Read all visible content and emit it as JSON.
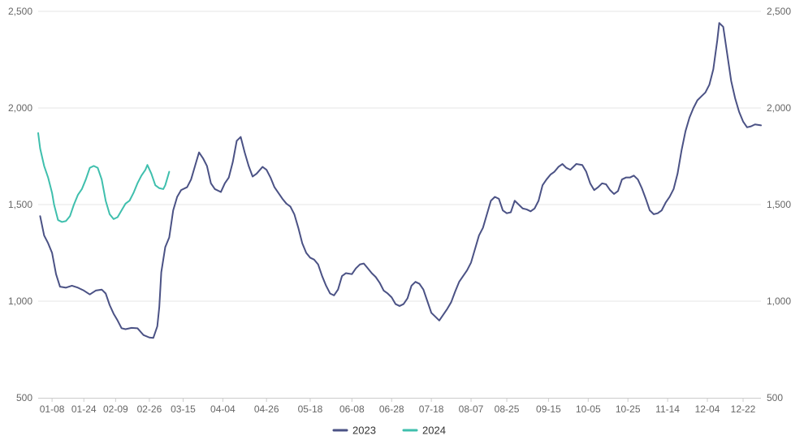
{
  "chart_data": {
    "type": "line",
    "title": "",
    "xlabel": "",
    "ylabel": "",
    "ylim": [
      500,
      2500
    ],
    "y_ticks": [
      500,
      1000,
      1500,
      2000,
      2500
    ],
    "y_tick_labels": [
      "500",
      "1,000",
      "1,500",
      "2,000",
      "2,500"
    ],
    "y_axis_sides": [
      "left",
      "right"
    ],
    "grid": true,
    "legend": "bottom-center",
    "x_tick_labels": [
      "01-08",
      "01-24",
      "02-09",
      "02-26",
      "03-15",
      "04-04",
      "04-26",
      "05-18",
      "06-08",
      "06-28",
      "07-18",
      "08-07",
      "08-25",
      "09-15",
      "10-05",
      "10-25",
      "11-14",
      "12-04",
      "12-22"
    ],
    "x_tick_day": [
      8,
      24,
      40,
      57,
      74,
      94,
      116,
      138,
      159,
      179,
      199,
      219,
      237,
      258,
      278,
      298,
      318,
      338,
      356
    ],
    "x_range_day": [
      1,
      365
    ],
    "series": [
      {
        "name": "2023",
        "color": "#4B5285",
        "points": [
          [
            2,
            1440
          ],
          [
            4,
            1340
          ],
          [
            6,
            1300
          ],
          [
            8,
            1250
          ],
          [
            10,
            1140
          ],
          [
            12,
            1075
          ],
          [
            15,
            1070
          ],
          [
            18,
            1080
          ],
          [
            21,
            1070
          ],
          [
            24,
            1055
          ],
          [
            27,
            1035
          ],
          [
            30,
            1055
          ],
          [
            33,
            1060
          ],
          [
            35,
            1040
          ],
          [
            37,
            980
          ],
          [
            39,
            935
          ],
          [
            41,
            900
          ],
          [
            43,
            860
          ],
          [
            45,
            855
          ],
          [
            48,
            862
          ],
          [
            51,
            860
          ],
          [
            54,
            825
          ],
          [
            57,
            812
          ],
          [
            59,
            810
          ],
          [
            61,
            870
          ],
          [
            62,
            970
          ],
          [
            63,
            1150
          ],
          [
            65,
            1280
          ],
          [
            67,
            1330
          ],
          [
            69,
            1470
          ],
          [
            71,
            1540
          ],
          [
            73,
            1575
          ],
          [
            76,
            1590
          ],
          [
            78,
            1630
          ],
          [
            80,
            1700
          ],
          [
            82,
            1770
          ],
          [
            84,
            1740
          ],
          [
            86,
            1700
          ],
          [
            88,
            1610
          ],
          [
            90,
            1580
          ],
          [
            93,
            1565
          ],
          [
            95,
            1610
          ],
          [
            97,
            1640
          ],
          [
            99,
            1720
          ],
          [
            101,
            1830
          ],
          [
            103,
            1850
          ],
          [
            105,
            1770
          ],
          [
            107,
            1700
          ],
          [
            109,
            1645
          ],
          [
            111,
            1660
          ],
          [
            114,
            1695
          ],
          [
            116,
            1680
          ],
          [
            118,
            1640
          ],
          [
            120,
            1590
          ],
          [
            122,
            1560
          ],
          [
            124,
            1530
          ],
          [
            126,
            1505
          ],
          [
            128,
            1490
          ],
          [
            130,
            1450
          ],
          [
            132,
            1380
          ],
          [
            134,
            1300
          ],
          [
            136,
            1250
          ],
          [
            138,
            1225
          ],
          [
            140,
            1215
          ],
          [
            142,
            1190
          ],
          [
            144,
            1130
          ],
          [
            146,
            1080
          ],
          [
            148,
            1040
          ],
          [
            150,
            1030
          ],
          [
            152,
            1060
          ],
          [
            154,
            1130
          ],
          [
            156,
            1145
          ],
          [
            159,
            1140
          ],
          [
            161,
            1170
          ],
          [
            163,
            1190
          ],
          [
            165,
            1195
          ],
          [
            167,
            1170
          ],
          [
            169,
            1145
          ],
          [
            171,
            1125
          ],
          [
            173,
            1095
          ],
          [
            175,
            1055
          ],
          [
            177,
            1040
          ],
          [
            179,
            1020
          ],
          [
            181,
            985
          ],
          [
            183,
            975
          ],
          [
            185,
            985
          ],
          [
            187,
            1015
          ],
          [
            189,
            1080
          ],
          [
            191,
            1100
          ],
          [
            193,
            1090
          ],
          [
            195,
            1060
          ],
          [
            197,
            1000
          ],
          [
            199,
            940
          ],
          [
            201,
            920
          ],
          [
            203,
            900
          ],
          [
            205,
            930
          ],
          [
            207,
            960
          ],
          [
            209,
            995
          ],
          [
            211,
            1050
          ],
          [
            213,
            1100
          ],
          [
            215,
            1130
          ],
          [
            217,
            1160
          ],
          [
            219,
            1200
          ],
          [
            221,
            1270
          ],
          [
            223,
            1340
          ],
          [
            225,
            1380
          ],
          [
            227,
            1450
          ],
          [
            229,
            1520
          ],
          [
            231,
            1540
          ],
          [
            233,
            1530
          ],
          [
            235,
            1470
          ],
          [
            237,
            1455
          ],
          [
            239,
            1460
          ],
          [
            241,
            1520
          ],
          [
            243,
            1500
          ],
          [
            245,
            1480
          ],
          [
            247,
            1475
          ],
          [
            249,
            1465
          ],
          [
            251,
            1480
          ],
          [
            253,
            1520
          ],
          [
            255,
            1600
          ],
          [
            257,
            1630
          ],
          [
            259,
            1655
          ],
          [
            261,
            1670
          ],
          [
            263,
            1695
          ],
          [
            265,
            1710
          ],
          [
            267,
            1690
          ],
          [
            269,
            1680
          ],
          [
            272,
            1710
          ],
          [
            275,
            1705
          ],
          [
            277,
            1670
          ],
          [
            279,
            1610
          ],
          [
            281,
            1575
          ],
          [
            283,
            1590
          ],
          [
            285,
            1610
          ],
          [
            287,
            1605
          ],
          [
            289,
            1575
          ],
          [
            291,
            1555
          ],
          [
            293,
            1570
          ],
          [
            295,
            1630
          ],
          [
            297,
            1640
          ],
          [
            299,
            1640
          ],
          [
            301,
            1650
          ],
          [
            303,
            1630
          ],
          [
            305,
            1585
          ],
          [
            307,
            1530
          ],
          [
            309,
            1470
          ],
          [
            311,
            1450
          ],
          [
            313,
            1455
          ],
          [
            315,
            1470
          ],
          [
            317,
            1510
          ],
          [
            319,
            1540
          ],
          [
            321,
            1580
          ],
          [
            323,
            1660
          ],
          [
            325,
            1780
          ],
          [
            327,
            1880
          ],
          [
            329,
            1950
          ],
          [
            331,
            2000
          ],
          [
            333,
            2040
          ],
          [
            335,
            2060
          ],
          [
            337,
            2080
          ],
          [
            339,
            2120
          ],
          [
            341,
            2200
          ],
          [
            343,
            2350
          ],
          [
            344,
            2440
          ],
          [
            346,
            2420
          ],
          [
            348,
            2280
          ],
          [
            350,
            2140
          ],
          [
            352,
            2050
          ],
          [
            354,
            1980
          ],
          [
            356,
            1930
          ],
          [
            358,
            1900
          ],
          [
            360,
            1905
          ],
          [
            362,
            1915
          ],
          [
            365,
            1910
          ]
        ]
      },
      {
        "name": "2024",
        "color": "#3FBFAD",
        "points": [
          [
            1,
            1870
          ],
          [
            2,
            1790
          ],
          [
            4,
            1700
          ],
          [
            6,
            1640
          ],
          [
            8,
            1560
          ],
          [
            9,
            1500
          ],
          [
            11,
            1420
          ],
          [
            13,
            1410
          ],
          [
            15,
            1415
          ],
          [
            17,
            1440
          ],
          [
            19,
            1500
          ],
          [
            21,
            1550
          ],
          [
            23,
            1580
          ],
          [
            25,
            1630
          ],
          [
            27,
            1690
          ],
          [
            29,
            1700
          ],
          [
            31,
            1690
          ],
          [
            33,
            1630
          ],
          [
            35,
            1520
          ],
          [
            37,
            1450
          ],
          [
            39,
            1425
          ],
          [
            41,
            1435
          ],
          [
            43,
            1470
          ],
          [
            45,
            1505
          ],
          [
            47,
            1520
          ],
          [
            49,
            1560
          ],
          [
            51,
            1610
          ],
          [
            53,
            1650
          ],
          [
            55,
            1680
          ],
          [
            56,
            1705
          ],
          [
            58,
            1660
          ],
          [
            60,
            1600
          ],
          [
            62,
            1585
          ],
          [
            64,
            1580
          ],
          [
            65,
            1600
          ],
          [
            67,
            1670
          ]
        ]
      }
    ]
  }
}
